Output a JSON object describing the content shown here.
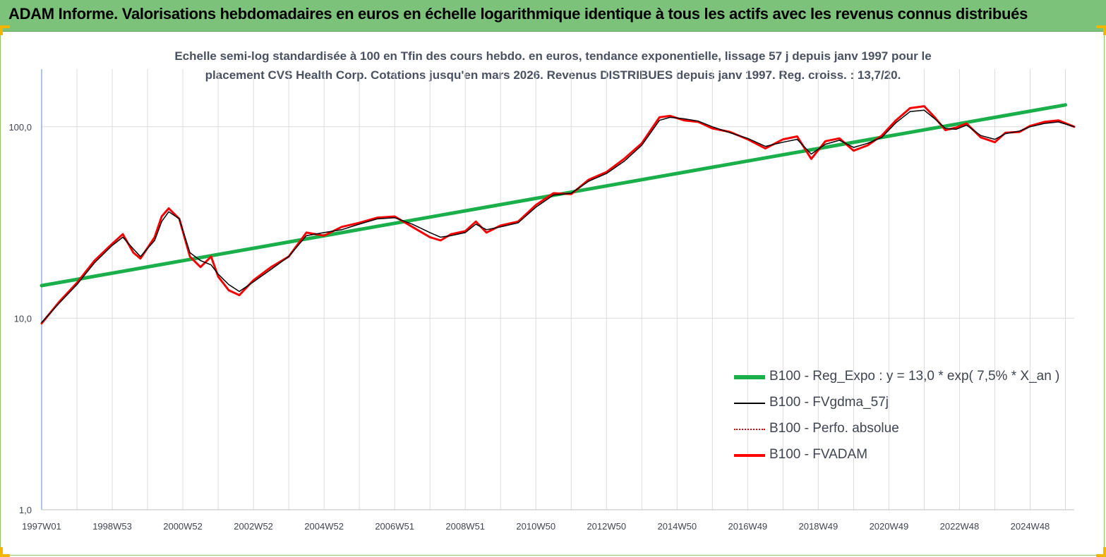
{
  "banner": {
    "title": "ADAM Informe. Valorisations hebdomadaires en euros en échelle logarithmique identique à tous les actifs avec les revenus connus distribués"
  },
  "chart_data": {
    "type": "line",
    "title_lines": [
      "Echelle semi-log standardisée à 100 en Tfin des cours hebdo. en euros, tendance exponentielle, lissage 57 j depuis janv 1997 pour le",
      "placement CVS Health Corp. Cotations jusqu'en mars 2026. Revenus DISTRIBUES depuis janv 1997. Reg. croiss. : 13,7/20."
    ],
    "y_scale": "log",
    "ylim": [
      1,
      200
    ],
    "y_ticks": [
      1,
      10,
      100
    ],
    "y_tick_labels": [
      "1,0",
      "10,0",
      "100,0"
    ],
    "xlim": [
      1997.0,
      2026.25
    ],
    "x_ticks": [
      1997.0,
      1999.0,
      2001.0,
      2003.0,
      2005.0,
      2007.0,
      2009.0,
      2011.0,
      2013.0,
      2015.0,
      2017.0,
      2019.0,
      2021.0,
      2023.0,
      2025.0
    ],
    "x_tick_labels": [
      "1997W01",
      "1998W53",
      "2000W52",
      "2002W52",
      "2004W52",
      "2006W51",
      "2008W51",
      "2010W50",
      "2012W50",
      "2014W50",
      "2016W49",
      "2018W49",
      "2020W49",
      "2022W48",
      "2024W48"
    ],
    "grid": "vertical",
    "legend_position": "right",
    "colors": {
      "regression": "#1aaf4b",
      "smoothed": "#000000",
      "absolute": "#e00000",
      "fvadam": "#ff0000",
      "grid": "#dcdcdc",
      "axis": "#5b8fc9"
    },
    "series": [
      {
        "name": "B100 - Reg_Expo : y = 13,0 * exp( 7,5% *  X_an )",
        "key": "regression",
        "x": [
          1997.0,
          2026.0
        ],
        "values": [
          14.8,
          130.0
        ]
      },
      {
        "name": "B100 - FVgdma_57j",
        "key": "smoothed",
        "x": [
          1997.0,
          1997.5,
          1998.0,
          1998.5,
          1999.0,
          1999.3,
          1999.6,
          1999.8,
          2000.2,
          2000.4,
          2000.6,
          2000.9,
          2001.2,
          2001.5,
          2001.8,
          2002.0,
          2002.3,
          2002.6,
          2003.0,
          2003.5,
          2004.0,
          2004.5,
          2005.0,
          2005.5,
          2006.0,
          2006.5,
          2007.0,
          2007.5,
          2008.0,
          2008.3,
          2008.6,
          2009.0,
          2009.3,
          2009.6,
          2010.0,
          2010.5,
          2011.0,
          2011.5,
          2012.0,
          2012.5,
          2013.0,
          2013.5,
          2014.0,
          2014.5,
          2014.8,
          2015.2,
          2015.6,
          2016.0,
          2016.5,
          2017.0,
          2017.5,
          2018.0,
          2018.4,
          2018.8,
          2019.2,
          2019.6,
          2020.0,
          2020.4,
          2020.8,
          2021.2,
          2021.6,
          2022.0,
          2022.3,
          2022.6,
          2022.9,
          2023.2,
          2023.6,
          2024.0,
          2024.3,
          2024.7,
          2025.0,
          2025.4,
          2025.8,
          2026.25
        ],
        "values": [
          9.5,
          12.0,
          15.0,
          19.5,
          24.0,
          26.5,
          23.0,
          21.0,
          25.5,
          32.0,
          36.0,
          33.0,
          22.0,
          20.0,
          19.0,
          17.0,
          15.0,
          13.8,
          15.5,
          18.0,
          21.0,
          27.0,
          28.0,
          29.0,
          31.0,
          33.0,
          33.5,
          31.0,
          28.0,
          26.5,
          27.0,
          28.0,
          31.0,
          29.0,
          30.0,
          31.5,
          38.0,
          44.0,
          45.0,
          52.0,
          57.0,
          66.0,
          80.0,
          108.0,
          112.0,
          110.0,
          107.0,
          100.0,
          93.0,
          87.0,
          79.0,
          83.0,
          86.0,
          72.0,
          81.0,
          85.0,
          78.0,
          82.0,
          88.0,
          105.0,
          120.0,
          122.0,
          110.0,
          98.0,
          97.0,
          102.0,
          90.0,
          86.0,
          92.0,
          95.0,
          100.0,
          104.0,
          106.0,
          100.0
        ]
      },
      {
        "name": "B100 - Perfo. absolue",
        "key": "absolute",
        "x": [
          1997.0,
          1997.5,
          1998.0,
          1998.5,
          1999.0,
          1999.3,
          1999.6,
          1999.8,
          2000.2,
          2000.4,
          2000.6,
          2000.9,
          2001.2,
          2001.5,
          2001.8,
          2002.0,
          2002.3,
          2002.6,
          2003.0,
          2003.5,
          2004.0,
          2004.5,
          2005.0,
          2005.5,
          2006.0,
          2006.5,
          2007.0,
          2007.5,
          2008.0,
          2008.3,
          2008.6,
          2009.0,
          2009.3,
          2009.6,
          2010.0,
          2010.5,
          2011.0,
          2011.5,
          2012.0,
          2012.5,
          2013.0,
          2013.5,
          2014.0,
          2014.5,
          2014.8,
          2015.2,
          2015.6,
          2016.0,
          2016.5,
          2017.0,
          2017.5,
          2018.0,
          2018.4,
          2018.8,
          2019.2,
          2019.6,
          2020.0,
          2020.4,
          2020.8,
          2021.2,
          2021.6,
          2022.0,
          2022.3,
          2022.6,
          2022.9,
          2023.2,
          2023.6,
          2024.0,
          2024.3,
          2024.7,
          2025.0,
          2025.4,
          2025.8,
          2026.25
        ],
        "values": [
          9.4,
          12.2,
          15.3,
          20.0,
          24.5,
          27.5,
          22.0,
          20.5,
          26.5,
          34.0,
          37.5,
          33.0,
          21.0,
          18.5,
          21.0,
          16.5,
          14.0,
          13.2,
          15.8,
          18.5,
          21.0,
          28.0,
          27.0,
          30.0,
          31.5,
          33.5,
          34.0,
          30.0,
          26.5,
          25.5,
          27.5,
          28.5,
          32.0,
          28.0,
          30.5,
          32.0,
          39.0,
          45.0,
          44.5,
          53.0,
          58.0,
          68.0,
          82.0,
          112.0,
          114.0,
          108.0,
          106.0,
          98.0,
          94.0,
          86.0,
          77.0,
          86.0,
          89.0,
          68.0,
          84.0,
          87.0,
          75.0,
          80.0,
          90.0,
          108.0,
          125.0,
          128.0,
          112.0,
          96.0,
          99.0,
          104.0,
          88.0,
          83.0,
          93.0,
          94.0,
          101.0,
          106.0,
          108.0,
          100.0
        ]
      },
      {
        "name": "B100 - FVADAM",
        "key": "fvadam",
        "x": [
          1997.0,
          1997.5,
          1998.0,
          1998.5,
          1999.0,
          1999.3,
          1999.6,
          1999.8,
          2000.2,
          2000.4,
          2000.6,
          2000.9,
          2001.2,
          2001.5,
          2001.8,
          2002.0,
          2002.3,
          2002.6,
          2003.0,
          2003.5,
          2004.0,
          2004.5,
          2005.0,
          2005.5,
          2006.0,
          2006.5,
          2007.0,
          2007.5,
          2008.0,
          2008.3,
          2008.6,
          2009.0,
          2009.3,
          2009.6,
          2010.0,
          2010.5,
          2011.0,
          2011.5,
          2012.0,
          2012.5,
          2013.0,
          2013.5,
          2014.0,
          2014.5,
          2014.8,
          2015.2,
          2015.6,
          2016.0,
          2016.5,
          2017.0,
          2017.5,
          2018.0,
          2018.4,
          2018.8,
          2019.2,
          2019.6,
          2020.0,
          2020.4,
          2020.8,
          2021.2,
          2021.6,
          2022.0,
          2022.3,
          2022.6,
          2022.9,
          2023.2,
          2023.6,
          2024.0,
          2024.3,
          2024.7,
          2025.0,
          2025.4,
          2025.8,
          2026.25
        ],
        "values": [
          9.4,
          12.2,
          15.3,
          20.0,
          24.5,
          27.5,
          22.0,
          20.5,
          26.5,
          34.0,
          37.5,
          33.0,
          21.0,
          18.5,
          21.0,
          16.5,
          14.0,
          13.2,
          15.8,
          18.5,
          21.0,
          28.0,
          27.0,
          30.0,
          31.5,
          33.5,
          34.0,
          30.0,
          26.5,
          25.5,
          27.5,
          28.5,
          32.0,
          28.0,
          30.5,
          32.0,
          39.0,
          45.0,
          44.5,
          53.0,
          58.0,
          68.0,
          82.0,
          112.0,
          114.0,
          108.0,
          106.0,
          98.0,
          94.0,
          86.0,
          77.0,
          86.0,
          89.0,
          68.0,
          84.0,
          87.0,
          75.0,
          80.0,
          90.0,
          108.0,
          125.0,
          128.0,
          112.0,
          96.0,
          99.0,
          104.0,
          88.0,
          83.0,
          93.0,
          94.0,
          101.0,
          106.0,
          108.0,
          100.0
        ]
      }
    ]
  }
}
